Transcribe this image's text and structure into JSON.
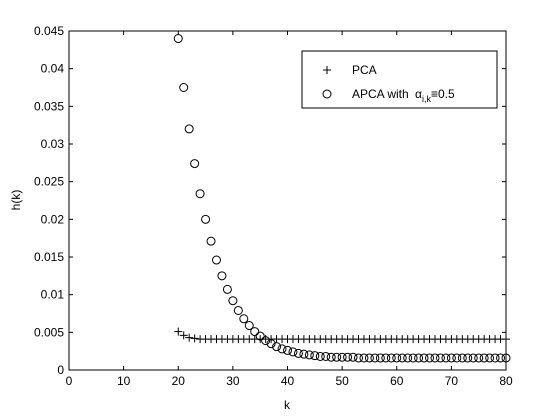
{
  "chart_data": {
    "type": "scatter",
    "title": "",
    "xlabel": "k",
    "ylabel": "h(k)",
    "xlim": [
      0,
      80
    ],
    "ylim": [
      0,
      0.045
    ],
    "grid": false,
    "legend_position": "top-right",
    "x_ticks": [
      "0",
      "10",
      "20",
      "30",
      "40",
      "50",
      "60",
      "70",
      "80"
    ],
    "y_ticks": [
      "0",
      "0.005",
      "0.01",
      "0.015",
      "0.02",
      "0.025",
      "0.03",
      "0.035",
      "0.04",
      "0.045"
    ],
    "series": [
      {
        "name": "PCA",
        "marker": "plus",
        "x": [
          20,
          21,
          22,
          23,
          24,
          25,
          26,
          27,
          28,
          29,
          30,
          31,
          32,
          33,
          34,
          35,
          36,
          37,
          38,
          39,
          40,
          41,
          42,
          43,
          44,
          45,
          46,
          47,
          48,
          49,
          50,
          51,
          52,
          53,
          54,
          55,
          56,
          57,
          58,
          59,
          60,
          61,
          62,
          63,
          64,
          65,
          66,
          67,
          68,
          69,
          70,
          71,
          72,
          73,
          74,
          75,
          76,
          77,
          78,
          79,
          80
        ],
        "y": [
          0.0051,
          0.0046,
          0.0043,
          0.0042,
          0.0041,
          0.0041,
          0.0041,
          0.0041,
          0.0041,
          0.0041,
          0.0041,
          0.0041,
          0.0041,
          0.0041,
          0.0041,
          0.0041,
          0.0041,
          0.0041,
          0.0041,
          0.0041,
          0.0041,
          0.0041,
          0.0041,
          0.0041,
          0.0041,
          0.0041,
          0.0041,
          0.0041,
          0.0041,
          0.0041,
          0.0041,
          0.0041,
          0.0041,
          0.0041,
          0.0041,
          0.0041,
          0.0041,
          0.0041,
          0.0041,
          0.0041,
          0.0041,
          0.0041,
          0.0041,
          0.0041,
          0.0041,
          0.0041,
          0.0041,
          0.0041,
          0.0041,
          0.0041,
          0.0041,
          0.0041,
          0.0041,
          0.0041,
          0.0041,
          0.0041,
          0.0041,
          0.0041,
          0.0041,
          0.0041,
          0.0041
        ]
      },
      {
        "name": "APCA with α_{i,k}≡0.5",
        "marker": "circle",
        "x": [
          20,
          21,
          22,
          23,
          24,
          25,
          26,
          27,
          28,
          29,
          30,
          31,
          32,
          33,
          34,
          35,
          36,
          37,
          38,
          39,
          40,
          41,
          42,
          43,
          44,
          45,
          46,
          47,
          48,
          49,
          50,
          51,
          52,
          53,
          54,
          55,
          56,
          57,
          58,
          59,
          60,
          61,
          62,
          63,
          64,
          65,
          66,
          67,
          68,
          69,
          70,
          71,
          72,
          73,
          74,
          75,
          76,
          77,
          78,
          79,
          80
        ],
        "y": [
          0.044,
          0.0375,
          0.032,
          0.0274,
          0.0234,
          0.02,
          0.0171,
          0.0146,
          0.0125,
          0.0107,
          0.0092,
          0.0079,
          0.0068,
          0.0059,
          0.0051,
          0.0045,
          0.0039,
          0.0035,
          0.0031,
          0.0028,
          0.0026,
          0.0024,
          0.0022,
          0.0021,
          0.002,
          0.0019,
          0.0018,
          0.0018,
          0.0017,
          0.0017,
          0.0017,
          0.0017,
          0.0017,
          0.0016,
          0.0016,
          0.0016,
          0.0016,
          0.0016,
          0.0016,
          0.0016,
          0.0016,
          0.0016,
          0.0016,
          0.0016,
          0.0016,
          0.0016,
          0.0016,
          0.0016,
          0.0016,
          0.0016,
          0.0016,
          0.0016,
          0.0016,
          0.0016,
          0.0016,
          0.0016,
          0.0016,
          0.0016,
          0.0016,
          0.0016,
          0.0016
        ]
      }
    ],
    "legend": {
      "pca_label": "PCA",
      "apca_prefix": "APCA with ",
      "apca_alpha": "α",
      "apca_sub": "i,k",
      "apca_suffix": "≡0.5"
    }
  }
}
